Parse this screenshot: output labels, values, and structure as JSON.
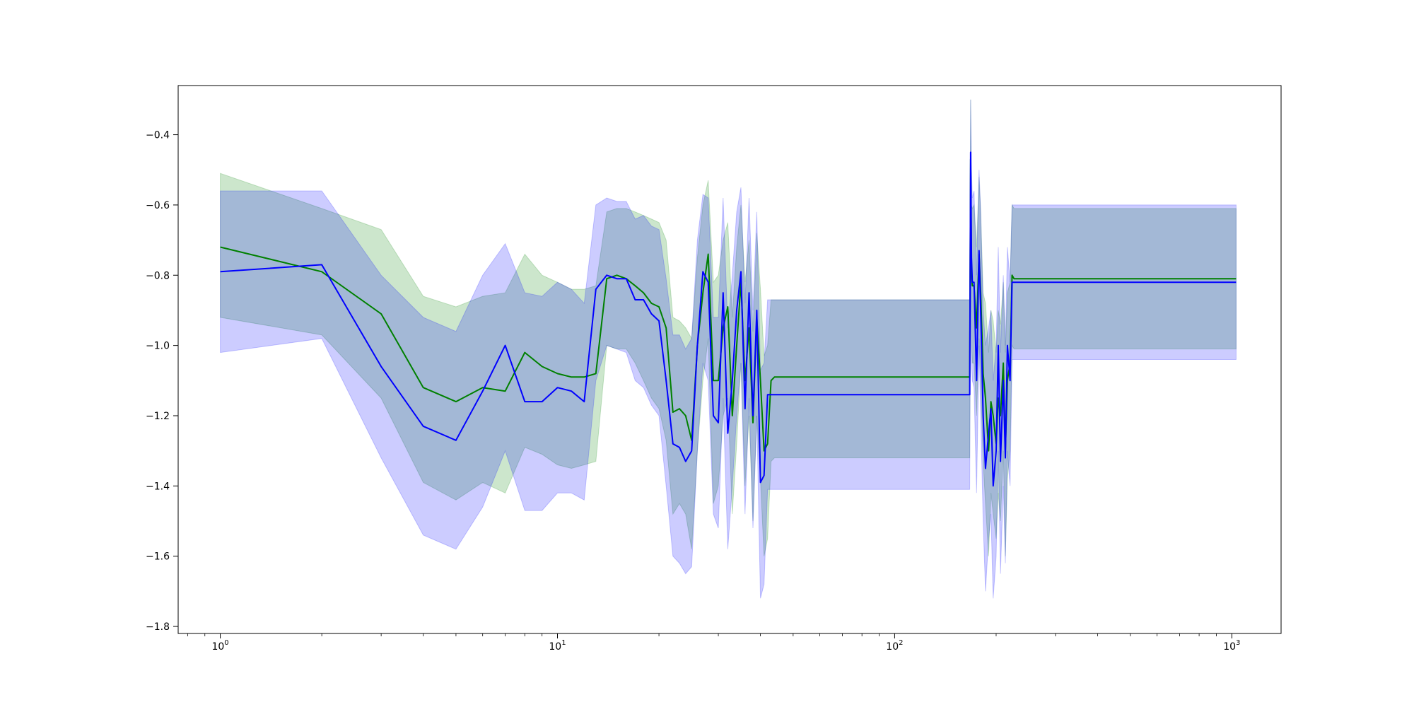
{
  "chart_data": {
    "type": "line",
    "title": "",
    "xlabel": "",
    "ylabel": "",
    "xscale": "log",
    "xlim": [
      0.75,
      1400
    ],
    "ylim": [
      -1.82,
      -0.26
    ],
    "grid": false,
    "xticks": [
      {
        "value": 1,
        "base": "10",
        "exp": "0"
      },
      {
        "value": 10,
        "base": "10",
        "exp": "1"
      },
      {
        "value": 100,
        "base": "10",
        "exp": "2"
      },
      {
        "value": 1000,
        "base": "10",
        "exp": "3"
      }
    ],
    "yticks": [
      {
        "value": -0.4,
        "label": "−0.4"
      },
      {
        "value": -0.6,
        "label": "−0.6"
      },
      {
        "value": -0.8,
        "label": "−0.8"
      },
      {
        "value": -1.0,
        "label": "−1.0"
      },
      {
        "value": -1.2,
        "label": "−1.2"
      },
      {
        "value": -1.4,
        "label": "−1.4"
      },
      {
        "value": -1.6,
        "label": "−1.6"
      },
      {
        "value": -1.8,
        "label": "−1.8"
      }
    ],
    "series": [
      {
        "color": "#008000",
        "band_color": "#008000",
        "band_opacity": 0.2,
        "x": [
          1,
          2,
          3,
          4,
          5,
          6,
          7,
          8,
          9,
          10,
          11,
          12,
          13,
          14,
          15,
          16,
          17,
          18,
          19,
          20,
          21,
          22,
          23,
          24,
          25,
          26,
          27,
          28,
          29,
          30,
          31,
          32,
          33,
          34,
          35,
          36,
          37,
          38,
          39,
          40,
          41,
          42,
          43,
          44,
          45,
          60,
          80,
          100,
          130,
          167,
          168,
          169,
          170,
          172,
          175,
          178,
          180,
          183,
          186,
          190,
          193,
          196,
          200,
          203,
          206,
          210,
          213,
          216,
          220,
          223,
          226,
          230,
          300,
          500,
          1000,
          1030
        ],
        "y": [
          -0.72,
          -0.79,
          -0.91,
          -1.12,
          -1.16,
          -1.12,
          -1.13,
          -1.02,
          -1.06,
          -1.08,
          -1.09,
          -1.09,
          -1.08,
          -0.81,
          -0.8,
          -0.81,
          -0.83,
          -0.85,
          -0.88,
          -0.89,
          -0.95,
          -1.19,
          -1.18,
          -1.2,
          -1.27,
          -1.0,
          -0.85,
          -0.74,
          -1.1,
          -1.1,
          -0.95,
          -0.89,
          -1.2,
          -1.0,
          -0.82,
          -1.1,
          -0.95,
          -1.22,
          -0.92,
          -1.1,
          -1.3,
          -1.28,
          -1.1,
          -1.09,
          -1.09,
          -1.09,
          -1.09,
          -1.09,
          -1.09,
          -1.09,
          -0.47,
          -0.8,
          -0.83,
          -0.83,
          -0.95,
          -0.74,
          -0.85,
          -1.08,
          -1.15,
          -1.3,
          -1.16,
          -1.2,
          -1.28,
          -1.15,
          -1.2,
          -1.05,
          -1.3,
          -1.1,
          -1.05,
          -0.8,
          -0.81,
          -0.81,
          -0.81,
          -0.81,
          -0.81,
          -0.81
        ],
        "lower": [
          -0.92,
          -0.97,
          -1.15,
          -1.39,
          -1.44,
          -1.39,
          -1.42,
          -1.29,
          -1.31,
          -1.34,
          -1.35,
          -1.34,
          -1.33,
          -1.0,
          -1.01,
          -1.01,
          -1.05,
          -1.1,
          -1.15,
          -1.18,
          -1.27,
          -1.48,
          -1.45,
          -1.48,
          -1.58,
          -1.3,
          -1.1,
          -0.98,
          -1.45,
          -1.4,
          -1.2,
          -1.15,
          -1.48,
          -1.28,
          -1.05,
          -1.4,
          -1.2,
          -1.5,
          -1.2,
          -1.38,
          -1.6,
          -1.55,
          -1.33,
          -1.32,
          -1.32,
          -1.32,
          -1.32,
          -1.32,
          -1.32,
          -1.32,
          -0.75,
          -1.0,
          -1.05,
          -1.05,
          -1.2,
          -0.98,
          -1.1,
          -1.33,
          -1.45,
          -1.6,
          -1.42,
          -1.48,
          -1.55,
          -1.42,
          -1.5,
          -1.3,
          -1.6,
          -1.38,
          -1.3,
          -1.0,
          -1.01,
          -1.01,
          -1.01,
          -1.01,
          -1.01,
          -1.01
        ],
        "upper": [
          -0.51,
          -0.61,
          -0.67,
          -0.86,
          -0.89,
          -0.86,
          -0.85,
          -0.74,
          -0.8,
          -0.82,
          -0.84,
          -0.84,
          -0.83,
          -0.62,
          -0.61,
          -0.61,
          -0.62,
          -0.63,
          -0.64,
          -0.65,
          -0.7,
          -0.92,
          -0.93,
          -0.95,
          -0.98,
          -0.75,
          -0.6,
          -0.53,
          -0.82,
          -0.8,
          -0.7,
          -0.65,
          -0.92,
          -0.72,
          -0.6,
          -0.82,
          -0.7,
          -0.96,
          -0.68,
          -0.84,
          -1.03,
          -1.0,
          -0.87,
          -0.87,
          -0.87,
          -0.87,
          -0.87,
          -0.87,
          -0.87,
          -0.87,
          -0.3,
          -0.6,
          -0.61,
          -0.6,
          -0.72,
          -0.52,
          -0.62,
          -0.85,
          -0.88,
          -1.02,
          -0.9,
          -0.93,
          -1.02,
          -0.9,
          -0.94,
          -0.82,
          -1.02,
          -0.85,
          -0.82,
          -0.6,
          -0.61,
          -0.61,
          -0.61,
          -0.61,
          -0.61,
          -0.61
        ]
      },
      {
        "color": "#0000ff",
        "band_color": "#0000ff",
        "band_opacity": 0.2,
        "x": [
          1,
          2,
          3,
          4,
          5,
          6,
          7,
          8,
          9,
          10,
          11,
          12,
          13,
          14,
          15,
          16,
          17,
          18,
          19,
          20,
          21,
          22,
          23,
          24,
          25,
          26,
          27,
          28,
          29,
          30,
          31,
          32,
          33,
          34,
          35,
          36,
          37,
          38,
          39,
          40,
          41,
          42,
          43,
          44,
          45,
          60,
          80,
          100,
          130,
          167,
          168,
          169,
          170,
          172,
          175,
          178,
          180,
          183,
          186,
          190,
          193,
          196,
          200,
          203,
          206,
          210,
          213,
          216,
          220,
          223,
          226,
          230,
          300,
          500,
          1000,
          1030
        ],
        "y": [
          -0.79,
          -0.77,
          -1.06,
          -1.23,
          -1.27,
          -1.13,
          -1.0,
          -1.16,
          -1.16,
          -1.12,
          -1.13,
          -1.16,
          -0.84,
          -0.8,
          -0.81,
          -0.81,
          -0.87,
          -0.87,
          -0.91,
          -0.93,
          -1.1,
          -1.28,
          -1.29,
          -1.33,
          -1.3,
          -1.0,
          -0.79,
          -0.82,
          -1.2,
          -1.22,
          -0.85,
          -1.25,
          -1.1,
          -0.9,
          -0.79,
          -1.18,
          -0.85,
          -1.2,
          -0.9,
          -1.39,
          -1.37,
          -1.14,
          -1.14,
          -1.14,
          -1.14,
          -1.14,
          -1.14,
          -1.14,
          -1.14,
          -1.14,
          -0.45,
          -0.75,
          -0.82,
          -0.82,
          -1.1,
          -0.73,
          -0.9,
          -1.2,
          -1.35,
          -1.25,
          -1.18,
          -1.4,
          -1.3,
          -1.0,
          -1.33,
          -1.1,
          -1.32,
          -1.0,
          -1.1,
          -0.82,
          -0.82,
          -0.82,
          -0.82,
          -0.82,
          -0.82,
          -0.82
        ],
        "lower": [
          -1.02,
          -0.98,
          -1.32,
          -1.54,
          -1.58,
          -1.46,
          -1.3,
          -1.47,
          -1.47,
          -1.42,
          -1.42,
          -1.44,
          -1.1,
          -1.0,
          -1.01,
          -1.02,
          -1.1,
          -1.12,
          -1.17,
          -1.2,
          -1.4,
          -1.6,
          -1.62,
          -1.65,
          -1.63,
          -1.3,
          -1.05,
          -1.1,
          -1.48,
          -1.52,
          -1.15,
          -1.58,
          -1.4,
          -1.2,
          -1.05,
          -1.48,
          -1.15,
          -1.52,
          -1.2,
          -1.72,
          -1.68,
          -1.41,
          -1.41,
          -1.41,
          -1.41,
          -1.41,
          -1.41,
          -1.41,
          -1.41,
          -1.41,
          -0.8,
          -1.05,
          -1.1,
          -1.12,
          -1.42,
          -1.0,
          -1.2,
          -1.5,
          -1.7,
          -1.55,
          -1.48,
          -1.72,
          -1.6,
          -1.3,
          -1.65,
          -1.4,
          -1.62,
          -1.3,
          -1.4,
          -1.04,
          -1.04,
          -1.04,
          -1.04,
          -1.04,
          -1.04,
          -1.04
        ],
        "upper": [
          -0.56,
          -0.56,
          -0.8,
          -0.92,
          -0.96,
          -0.8,
          -0.71,
          -0.85,
          -0.86,
          -0.82,
          -0.84,
          -0.88,
          -0.6,
          -0.58,
          -0.59,
          -0.59,
          -0.64,
          -0.63,
          -0.66,
          -0.67,
          -0.81,
          -0.97,
          -0.97,
          -1.01,
          -0.98,
          -0.7,
          -0.57,
          -0.58,
          -0.92,
          -0.92,
          -0.58,
          -0.95,
          -0.8,
          -0.62,
          -0.55,
          -0.88,
          -0.58,
          -0.9,
          -0.62,
          -1.07,
          -1.05,
          -0.87,
          -0.87,
          -0.87,
          -0.87,
          -0.87,
          -0.87,
          -0.87,
          -0.87,
          -0.87,
          -0.3,
          -0.5,
          -0.58,
          -0.56,
          -0.8,
          -0.5,
          -0.62,
          -0.9,
          -1.0,
          -0.95,
          -0.9,
          -1.1,
          -1.0,
          -0.72,
          -1.02,
          -0.8,
          -1.0,
          -0.72,
          -0.82,
          -0.6,
          -0.6,
          -0.6,
          -0.6,
          -0.6,
          -0.6,
          -0.6
        ]
      }
    ]
  }
}
